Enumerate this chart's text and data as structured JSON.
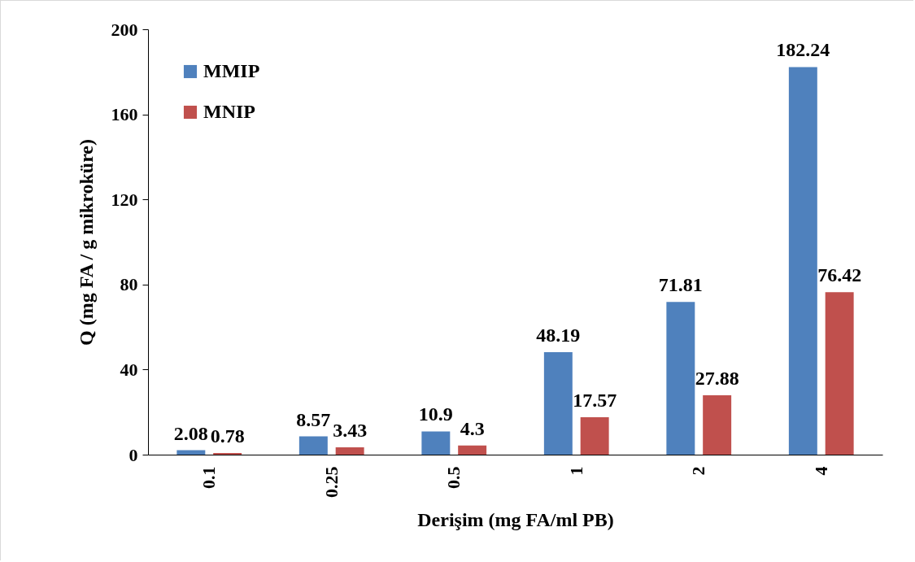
{
  "chart_data": {
    "type": "bar",
    "xlabel": "Derişim (mg FA/ml PB)",
    "ylabel": "Q (mg FA / g mikroküre)",
    "categories": [
      "0.1",
      "0.25",
      "0.5",
      "1",
      "2",
      "4"
    ],
    "series": [
      {
        "name": "MMIP",
        "color": "#4f81bd",
        "values": [
          2.08,
          8.57,
          10.9,
          48.19,
          71.81,
          182.24
        ]
      },
      {
        "name": "MNIP",
        "color": "#c0504d",
        "values": [
          0.78,
          3.43,
          4.3,
          17.57,
          27.88,
          76.42
        ]
      }
    ],
    "ylim": [
      0,
      200
    ],
    "yticks": [
      0,
      40,
      80,
      120,
      160,
      200
    ],
    "grid": false,
    "legend": "top left",
    "data_labels": true
  }
}
